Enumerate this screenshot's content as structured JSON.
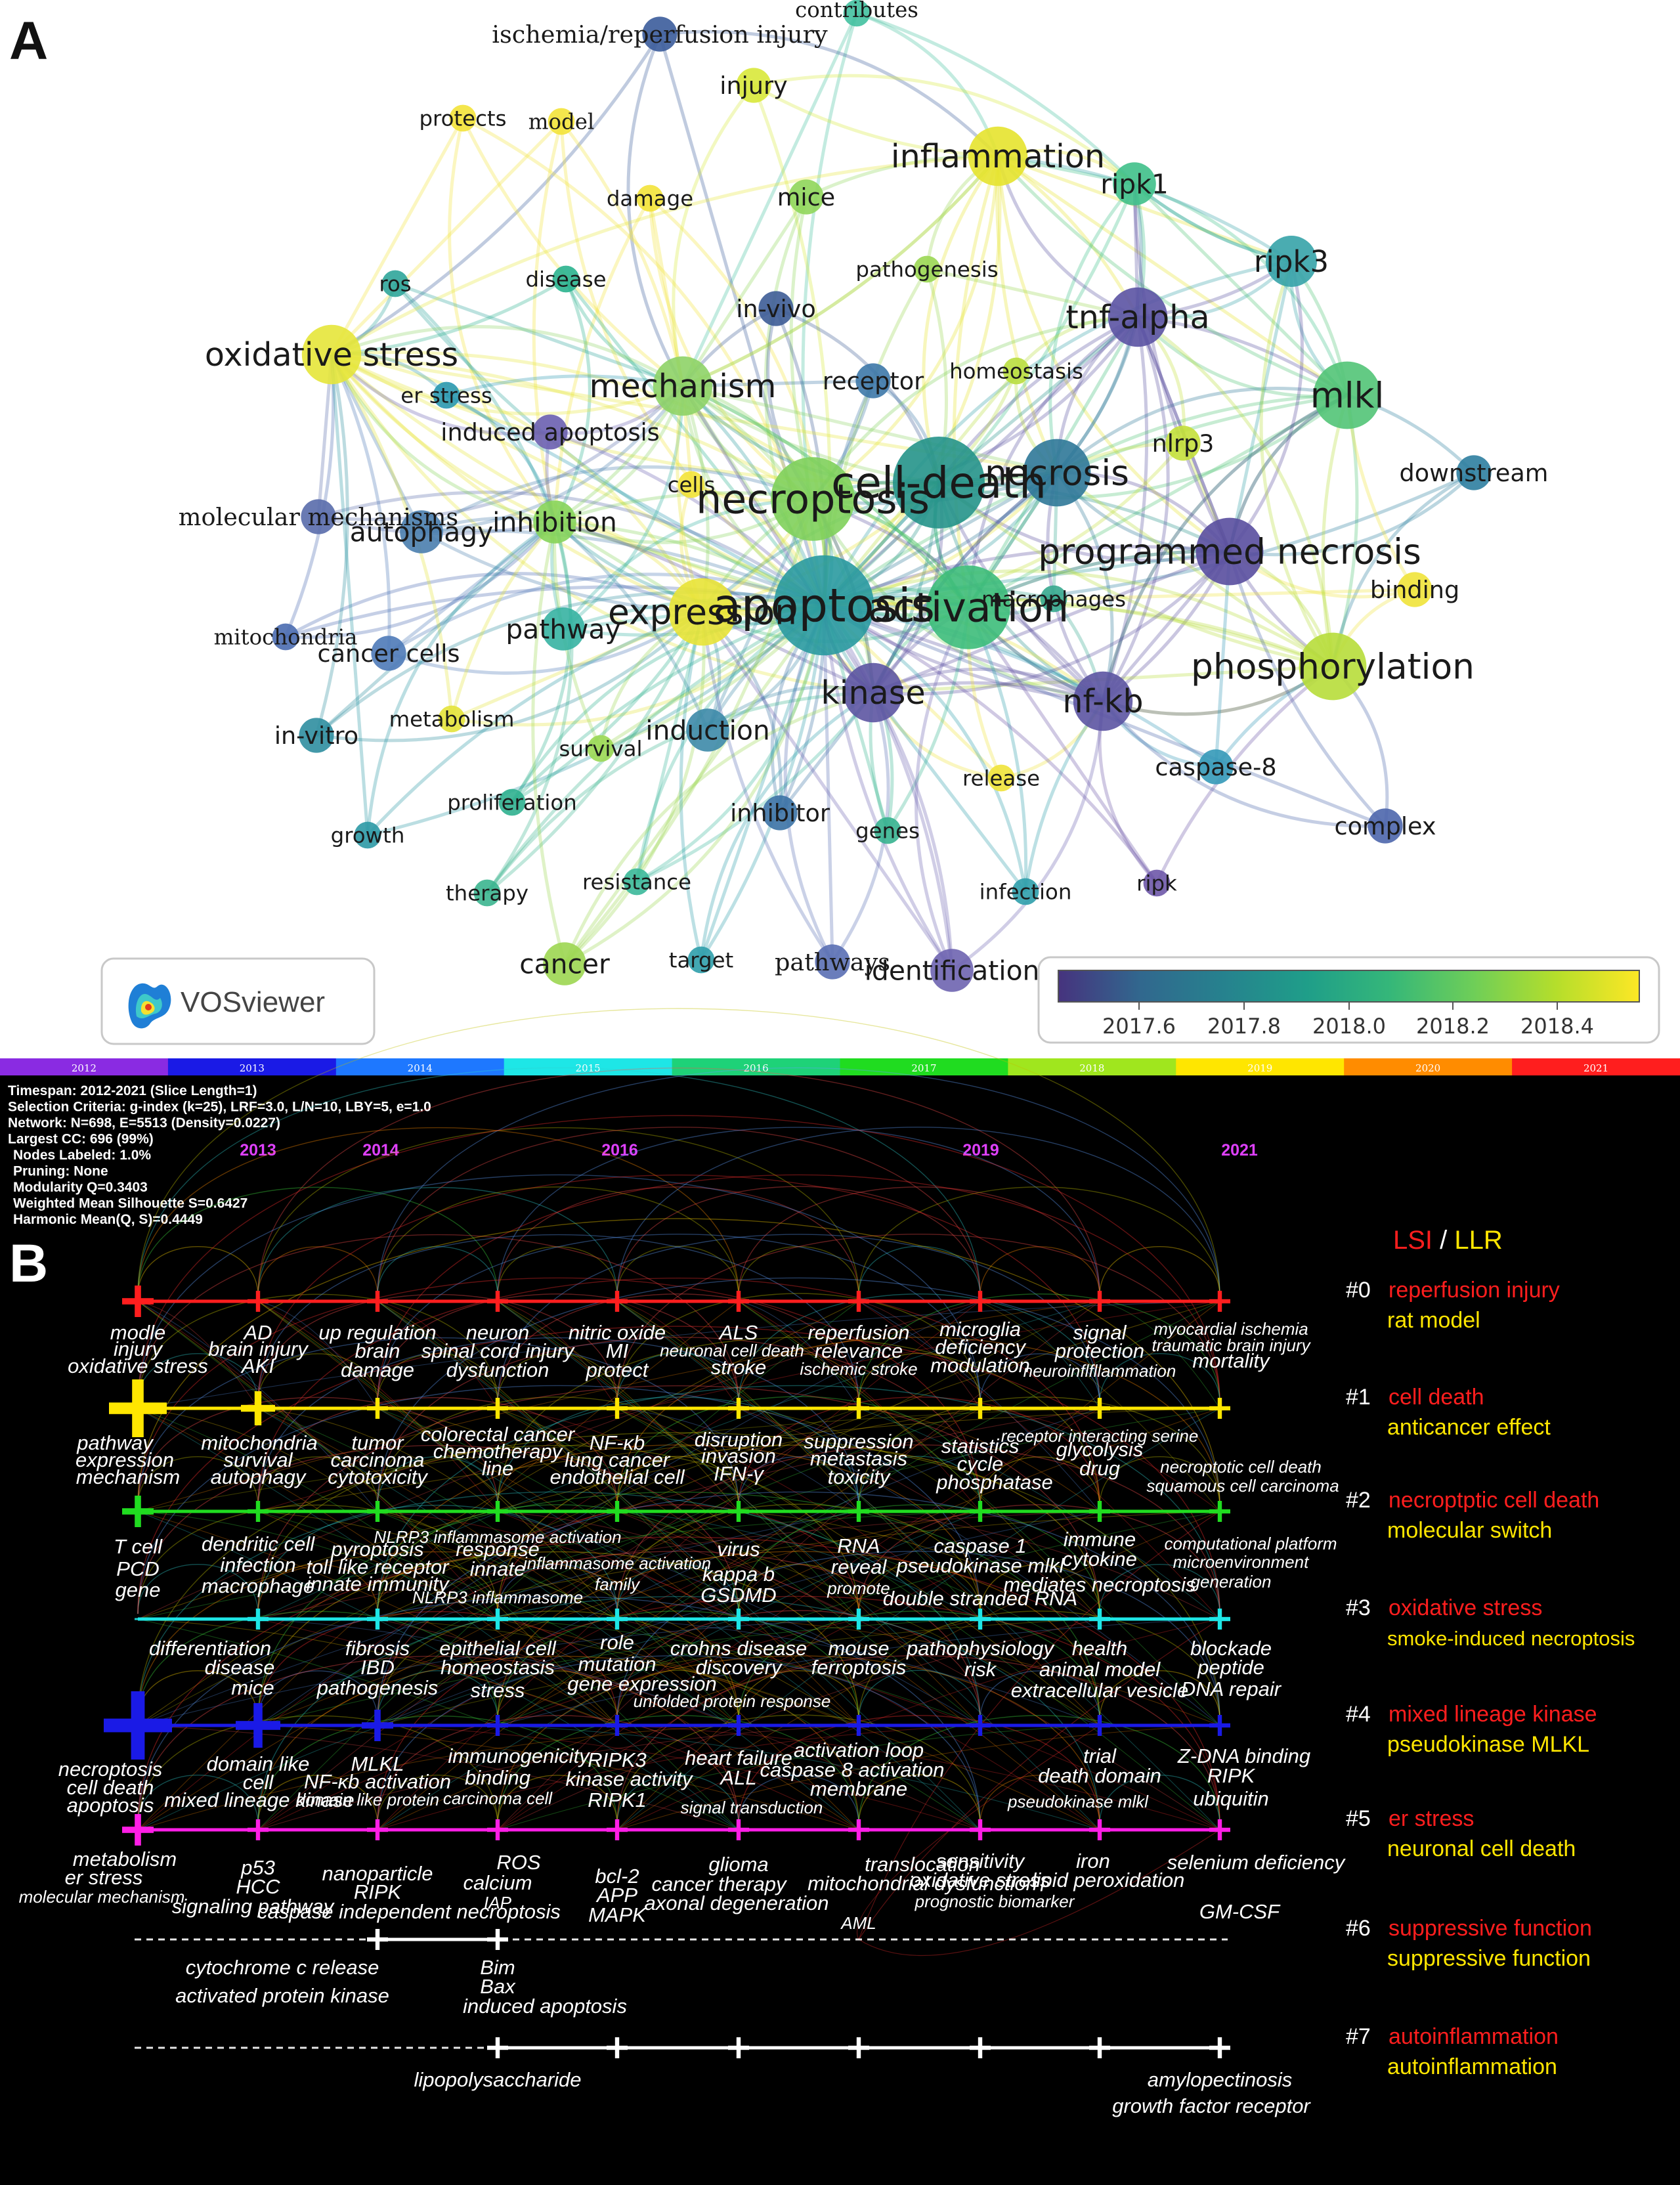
{
  "panel_a": {
    "letter": "A",
    "logo_text": "VOSviewer",
    "colorbar": {
      "colors": [
        "#46337e",
        "#31688e",
        "#26828e",
        "#1f9e89",
        "#35b779",
        "#6ece58",
        "#b5de2b",
        "#fde725"
      ],
      "ticks": [
        "2017.6",
        "2017.8",
        "2018.0",
        "2018.2",
        "2018.4"
      ]
    },
    "nodes": [
      {
        "id": "contributes",
        "label": "contributes",
        "size": 2,
        "color": "#43c1a0"
      },
      {
        "id": "isch",
        "label": "ischemia/reperfusion injury",
        "size": 3,
        "color": "#3b5c9b"
      },
      {
        "id": "injury",
        "label": "injury",
        "size": 3,
        "color": "#d8e83a"
      },
      {
        "id": "protects",
        "label": "protects",
        "size": 2,
        "color": "#f3e33a"
      },
      {
        "id": "model",
        "label": "model",
        "size": 2,
        "color": "#f3e33a"
      },
      {
        "id": "inflammation",
        "label": "inflammation",
        "size": 6,
        "color": "#e6e32e"
      },
      {
        "id": "ripk1",
        "label": "ripk1",
        "size": 4,
        "color": "#3fc08a"
      },
      {
        "id": "damage",
        "label": "damage",
        "size": 2,
        "color": "#f3e33a"
      },
      {
        "id": "mice",
        "label": "mice",
        "size": 3,
        "color": "#8fd65a"
      },
      {
        "id": "pathogenesis",
        "label": "pathogenesis",
        "size": 2,
        "color": "#9bd753"
      },
      {
        "id": "ripk3",
        "label": "ripk3",
        "size": 5,
        "color": "#36a3a8"
      },
      {
        "id": "ros",
        "label": "ros",
        "size": 2,
        "color": "#2fa59a"
      },
      {
        "id": "disease",
        "label": "disease",
        "size": 2,
        "color": "#2ab28e"
      },
      {
        "id": "invivo",
        "label": "in-vivo",
        "size": 3,
        "color": "#3d5c96"
      },
      {
        "id": "tnfa",
        "label": "tnf-alpha",
        "size": 6,
        "color": "#5b53a3"
      },
      {
        "id": "ox",
        "label": "oxidative stress",
        "size": 6,
        "color": "#e5e53a"
      },
      {
        "id": "mechanism",
        "label": "mechanism",
        "size": 6,
        "color": "#8ed367"
      },
      {
        "id": "receptor",
        "label": "receptor",
        "size": 3,
        "color": "#3d78a8"
      },
      {
        "id": "homeostasis",
        "label": "homeostasis",
        "size": 2,
        "color": "#b9de3f"
      },
      {
        "id": "mlkl",
        "label": "mlkl",
        "size": 7,
        "color": "#52c477"
      },
      {
        "id": "erstress",
        "label": "er stress",
        "size": 2,
        "color": "#2a98b0"
      },
      {
        "id": "indapop",
        "label": "induced apoptosis",
        "size": 3,
        "color": "#6a5fb0"
      },
      {
        "id": "nlrp3",
        "label": "nlrp3",
        "size": 3,
        "color": "#c4e03b"
      },
      {
        "id": "necrosis",
        "label": "necrosis",
        "size": 7,
        "color": "#2f7898"
      },
      {
        "id": "celldeath",
        "label": "cell-death",
        "size": 10,
        "color": "#25938a"
      },
      {
        "id": "downstream",
        "label": "downstream",
        "size": 3,
        "color": "#2d7ea0"
      },
      {
        "id": "cells",
        "label": "cells",
        "size": 2,
        "color": "#f3e33a"
      },
      {
        "id": "necroptosis",
        "label": "necroptosis",
        "size": 9,
        "color": "#7fd05b"
      },
      {
        "id": "molmech",
        "label": "molecular mechanisms",
        "size": 3,
        "color": "#596cab"
      },
      {
        "id": "autophagy",
        "label": "autophagy",
        "size": 4,
        "color": "#4a7eae"
      },
      {
        "id": "inhibition",
        "label": "inhibition",
        "size": 4,
        "color": "#86d45a"
      },
      {
        "id": "prognec",
        "label": "programmed necrosis",
        "size": 7,
        "color": "#594e9e"
      },
      {
        "id": "binding",
        "label": "binding",
        "size": 3,
        "color": "#f0e33a"
      },
      {
        "id": "mito",
        "label": "mitochondria",
        "size": 2,
        "color": "#4a6bb0"
      },
      {
        "id": "cancercells",
        "label": "cancer cells",
        "size": 3,
        "color": "#4e7ab8"
      },
      {
        "id": "pathway",
        "label": "pathway",
        "size": 4,
        "color": "#36b2a2"
      },
      {
        "id": "expression",
        "label": "expression",
        "size": 7,
        "color": "#e8e336"
      },
      {
        "id": "apoptosis",
        "label": "apoptosis",
        "size": 11,
        "color": "#2a9aa0"
      },
      {
        "id": "activation",
        "label": "activation",
        "size": 9,
        "color": "#3dbd7a"
      },
      {
        "id": "macrophages",
        "label": "macrophages",
        "size": 2,
        "color": "#36a88e"
      },
      {
        "id": "phos",
        "label": "phosphorylation",
        "size": 7,
        "color": "#b7dd3a"
      },
      {
        "id": "kinase",
        "label": "kinase",
        "size": 6,
        "color": "#5d55a2"
      },
      {
        "id": "nfkb",
        "label": "nf-kb",
        "size": 6,
        "color": "#5c54a2"
      },
      {
        "id": "invitro",
        "label": "in-vitro",
        "size": 3,
        "color": "#2f8ea0"
      },
      {
        "id": "metabolism",
        "label": "metabolism",
        "size": 2,
        "color": "#e4e33a"
      },
      {
        "id": "survival",
        "label": "survival",
        "size": 2,
        "color": "#9bd853"
      },
      {
        "id": "induction",
        "label": "induction",
        "size": 4,
        "color": "#3d8aa8"
      },
      {
        "id": "caspase8",
        "label": "caspase-8",
        "size": 3,
        "color": "#3499b8"
      },
      {
        "id": "release",
        "label": "release",
        "size": 2,
        "color": "#f0e33a"
      },
      {
        "id": "prolif",
        "label": "proliferation",
        "size": 2,
        "color": "#2fb08f"
      },
      {
        "id": "inhibitor",
        "label": "inhibitor",
        "size": 3,
        "color": "#3b72a5"
      },
      {
        "id": "genes",
        "label": "genes",
        "size": 2,
        "color": "#36b38f"
      },
      {
        "id": "growth",
        "label": "growth",
        "size": 2,
        "color": "#2c99a5"
      },
      {
        "id": "complex",
        "label": "complex",
        "size": 3,
        "color": "#4c66ac"
      },
      {
        "id": "therapy",
        "label": "therapy",
        "size": 2,
        "color": "#3bb58f"
      },
      {
        "id": "resistance",
        "label": "resistance",
        "size": 2,
        "color": "#3bb89a"
      },
      {
        "id": "infection",
        "label": "infection",
        "size": 2,
        "color": "#2f9fab"
      },
      {
        "id": "ripk",
        "label": "ripk",
        "size": 2,
        "color": "#6e58a8"
      },
      {
        "id": "cancer",
        "label": "cancer",
        "size": 4,
        "color": "#9cd651"
      },
      {
        "id": "target",
        "label": "target",
        "size": 2,
        "color": "#2f9fab"
      },
      {
        "id": "pathways",
        "label": "pathways",
        "size": 3,
        "color": "#5a6fb4"
      },
      {
        "id": "ident",
        "label": "identification",
        "size": 4,
        "color": "#6e64b0"
      }
    ]
  },
  "panel_b": {
    "letter": "B",
    "year_bar": [
      "2012",
      "2013",
      "2014",
      "2015",
      "2016",
      "2017",
      "2018",
      "2019",
      "2020",
      "2021"
    ],
    "year_bar_colors": [
      "#8a2be2",
      "#1a1ae6",
      "#1e78ff",
      "#1ee6e6",
      "#1ed278",
      "#20dc20",
      "#a0e61e",
      "#ffe600",
      "#ff8c00",
      "#ff1e1e"
    ],
    "info": [
      "Timespan: 2012-2021 (Slice Length=1)",
      "Selection Criteria: g-index (k=25), LRF=3.0, L/N=10, LBY=5, e=1.0",
      "Network: N=698, E=5513 (Density=0.0227)",
      "Largest CC: 696 (99%)",
      "Nodes Labeled: 1.0%",
      "Pruning: None",
      "Modularity Q=0.3403",
      "Weighted Mean Silhouette S=0.6427",
      "Harmonic Mean(Q, S)=0.4449"
    ],
    "year_labels": [
      "2013",
      "2014",
      "2016",
      "2019",
      "2021"
    ],
    "legend_lsi": "LSI",
    "legend_sep": " / ",
    "legend_llr": "LLR",
    "clusters": [
      {
        "id": "#0",
        "lsi": "reperfusion injury",
        "llr": "rat model",
        "color": "#ff1e1e"
      },
      {
        "id": "#1",
        "lsi": "cell death",
        "llr": "anticancer effect",
        "color": "#ffe600"
      },
      {
        "id": "#2",
        "lsi": "necroptptic cell death",
        "llr": "molecular switch",
        "color": "#20dc20"
      },
      {
        "id": "#3",
        "lsi": "oxidative stress",
        "llr": "smoke-induced necroptosis",
        "color": "#1ee6e6"
      },
      {
        "id": "#4",
        "lsi": "mixed lineage kinase",
        "llr": "pseudokinase MLKL",
        "color": "#1a1ae6"
      },
      {
        "id": "#5",
        "lsi": "er stress",
        "llr": "neuronal cell death",
        "color": "#ff1ee6"
      },
      {
        "id": "#6",
        "lsi": "suppressive function",
        "llr": "suppressive function",
        "color": "#ffffff"
      },
      {
        "id": "#7",
        "lsi": "autoinflammation",
        "llr": "autoinflammation",
        "color": "#ffffff"
      }
    ],
    "terms": [
      "modle",
      "injury",
      "oxidative stress",
      "AD",
      "brain injury",
      "AKI",
      "up regulation",
      "brain",
      "damage",
      "neuron",
      "spinal cord injury",
      "dysfunction",
      "nitric oxide",
      "MI",
      "protect",
      "ALS",
      "neuronal cell death",
      "stroke",
      "reperfusion",
      "relevance",
      "ischemic stroke",
      "microglia",
      "deficiency",
      "modulation",
      "signal",
      "protection",
      "neuroinflfllammation",
      "myocardial ischemia",
      "traumatic brain injury",
      "mortality",
      "pathway",
      "expression",
      "mechanism",
      "mitochondria",
      "survival",
      "autophagy",
      "tumor",
      "carcinoma",
      "cytotoxicity",
      "colorectal cancer",
      "chemotherapy",
      "line",
      "NF-κb",
      "lung cancer",
      "endothelial cell",
      "disruption",
      "invasion",
      "IFN-γ",
      "suppression",
      "metastasis",
      "toxicity",
      "statistics",
      "cycle",
      "phosphatase",
      "receptor interacting serine",
      "glycolysis",
      "drug",
      "necroptotic cell death",
      "squamous cell carcinoma",
      "T cell",
      "PCD",
      "gene",
      "dendritic cell",
      "infection",
      "macrophage",
      "pyroptosis",
      "toll like receptor",
      "innate immunity",
      "response",
      "innate",
      "NLRP3 inflammasome",
      "NLRP3 inflammasome activation",
      "inflammasome activation",
      "family",
      "virus",
      "kappa b",
      "GSDMD",
      "RNA",
      "reveal",
      "promote",
      "caspase 1",
      "pseudokinase mlkl",
      "double stranded RNA",
      "immune",
      "cytokine",
      "mediates necroptosis",
      "computational platform",
      "microenvironment",
      "generation",
      "differentiation",
      "disease",
      "mice",
      "fibrosis",
      "IBD",
      "pathogenesis",
      "epithelial cell",
      "homeostasis",
      "stress",
      "role",
      "mutation",
      "gene expression",
      "crohns disease",
      "discovery",
      "unfolded protein response",
      "mouse",
      "ferroptosis",
      "pathophysiology",
      "risk",
      "health",
      "animal model",
      "extracellular vesicle",
      "blockade",
      "peptide",
      "DNA repair",
      "necroptosis",
      "cell death",
      "apoptosis",
      "domain like",
      "cell",
      "mixed lineage kinase",
      "MLKL",
      "NF-κb activation",
      "domain like protein",
      "immunogenicity",
      "binding",
      "carcinoma cell",
      "RIPK3",
      "kinase activity",
      "RIPK1",
      "heart failure",
      "ALL",
      "signal transduction",
      "activation loop",
      "caspase 8 activation",
      "membrane",
      "trial",
      "death domain",
      "pseudokinase mlkl",
      "Z-DNA binding",
      "RIPK",
      "ubiquitin",
      "metabolism",
      "er stress",
      "molecular mechanism",
      "p53",
      "HCC",
      "signaling pathway",
      "nanoparticle",
      "RIPK",
      "caspase independent necroptosis",
      "ROS",
      "calcium",
      "IAP",
      "bcl-2",
      "APP",
      "MAPK",
      "glioma",
      "cancer therapy",
      "axonal degeneration",
      "translocation",
      "mitochondrial dysfunction",
      "AML",
      "sensitivity",
      "oxidative stress",
      "prognostic biomarker",
      "iron",
      "lipid peroxidation",
      "selenium deficiency",
      "GM-CSF",
      "cytochrome c release",
      "activated protein kinase",
      "Bim",
      "Bax",
      "induced apoptosis",
      "lipopolysaccharide",
      "amylopectinosis",
      "growth factor receptor"
    ]
  }
}
